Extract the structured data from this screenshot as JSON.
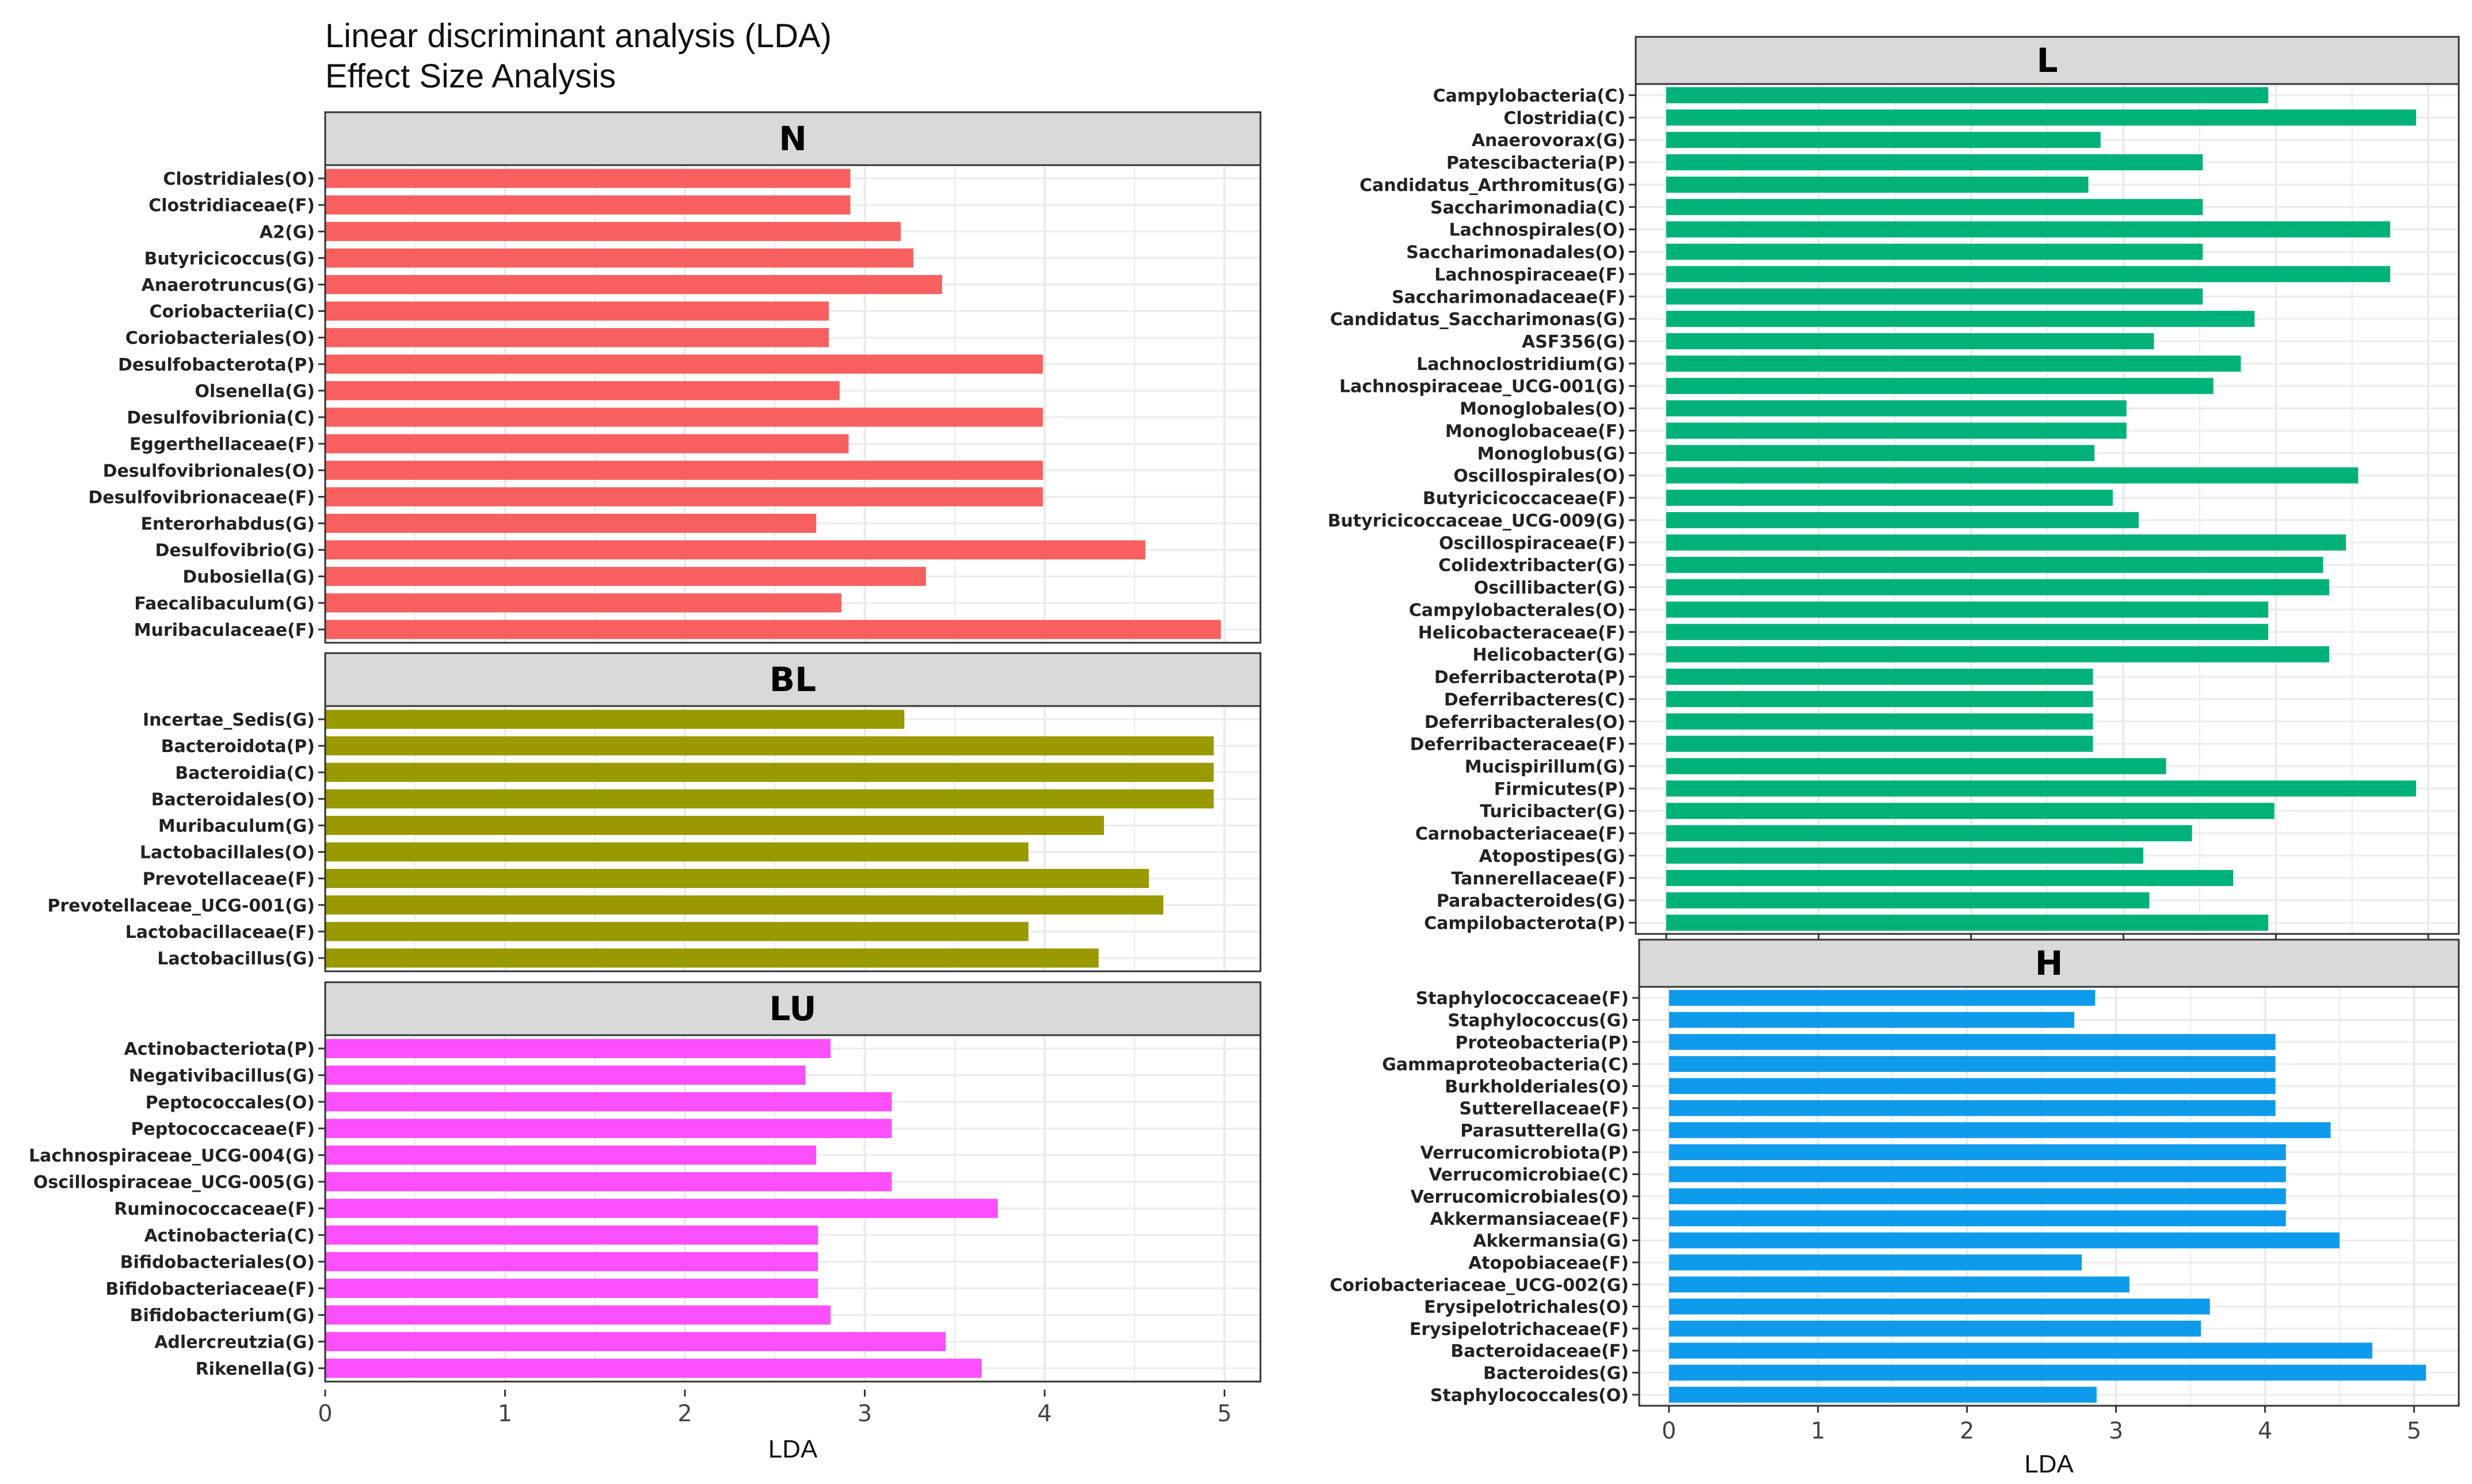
{
  "title_line1": "Linear discriminant analysis (LDA)",
  "title_line2": "Effect Size Analysis",
  "chart_data": [
    {
      "type": "bar",
      "orientation": "horizontal",
      "panel": "N",
      "color": "#F8605F",
      "xlabel": "LDA",
      "xlim": [
        0,
        5.2
      ],
      "xticks": [
        "0",
        "1",
        "2",
        "3",
        "4",
        "5"
      ],
      "categories": [
        "Clostridiales(O)",
        "Clostridiaceae(F)",
        "A2(G)",
        "Butyricicoccus(G)",
        "Anaerotruncus(G)",
        "Coriobacteriia(C)",
        "Coriobacteriales(O)",
        "Desulfobacterota(P)",
        "Olsenella(G)",
        "Desulfovibrionia(C)",
        "Eggerthellaceae(F)",
        "Desulfovibrionales(O)",
        "Desulfovibrionaceae(F)",
        "Enterorhabdus(G)",
        "Desulfovibrio(G)",
        "Dubosiella(G)",
        "Faecalibaculum(G)",
        "Muribaculaceae(F)"
      ],
      "values": [
        2.92,
        2.92,
        3.2,
        3.27,
        3.43,
        2.8,
        2.8,
        3.99,
        2.86,
        3.99,
        2.91,
        3.99,
        3.99,
        2.73,
        4.56,
        3.34,
        2.87,
        4.98
      ]
    },
    {
      "type": "bar",
      "orientation": "horizontal",
      "panel": "BL",
      "color": "#999900",
      "xlabel": "LDA",
      "xlim": [
        0,
        5.2
      ],
      "xticks": [
        "0",
        "1",
        "2",
        "3",
        "4",
        "5"
      ],
      "categories": [
        "Incertae_Sedis(G)",
        "Bacteroidota(P)",
        "Bacteroidia(C)",
        "Bacteroidales(O)",
        "Muribaculum(G)",
        "Lactobacillales(O)",
        "Prevotellaceae(F)",
        "Prevotellaceae_UCG-001(G)",
        "Lactobacillaceae(F)",
        "Lactobacillus(G)"
      ],
      "values": [
        3.22,
        4.94,
        4.94,
        4.94,
        4.33,
        3.91,
        4.58,
        4.66,
        3.91,
        4.3
      ]
    },
    {
      "type": "bar",
      "orientation": "horizontal",
      "panel": "LU",
      "color": "#FA4FFA",
      "xlabel": "LDA",
      "xlim": [
        0,
        5.2
      ],
      "xticks": [
        "0",
        "1",
        "2",
        "3",
        "4",
        "5"
      ],
      "categories": [
        "Actinobacteriota(P)",
        "Negativibacillus(G)",
        "Peptococcales(O)",
        "Peptococcaceae(F)",
        "Lachnospiraceae_UCG-004(G)",
        "Oscillospiraceae_UCG-005(G)",
        "Ruminococcaceae(F)",
        "Actinobacteria(C)",
        "Bifidobacteriales(O)",
        "Bifidobacteriaceae(F)",
        "Bifidobacterium(G)",
        "Adlercreutzia(G)",
        "Rikenella(G)"
      ],
      "values": [
        2.81,
        2.67,
        3.15,
        3.15,
        2.73,
        3.15,
        3.74,
        2.74,
        2.74,
        2.74,
        2.81,
        3.45,
        3.65
      ]
    },
    {
      "type": "bar",
      "orientation": "horizontal",
      "panel": "L",
      "color": "#00B27A",
      "xlabel": "",
      "xlim": [
        -0.2,
        5.2
      ],
      "xticks": [],
      "categories": [
        "Campylobacteria(C)",
        "Clostridia(C)",
        "Anaerovorax(G)",
        "Patescibacteria(P)",
        "Candidatus_Arthromitus(G)",
        "Saccharimonadia(C)",
        "Lachnospirales(O)",
        "Saccharimonadales(O)",
        "Lachnospiraceae(F)",
        "Saccharimonadaceae(F)",
        "Candidatus_Saccharimonas(G)",
        "ASF356(G)",
        "Lachnoclostridium(G)",
        "Lachnospiraceae_UCG-001(G)",
        "Monoglobales(O)",
        "Monoglobaceae(F)",
        "Monoglobus(G)",
        "Oscillospirales(O)",
        "Butyricicoccaceae(F)",
        "Butyricicoccaceae_UCG-009(G)",
        "Oscillospiraceae(F)",
        "Colidextribacter(G)",
        "Oscillibacter(G)",
        "Campylobacterales(O)",
        "Helicobacteraceae(F)",
        "Helicobacter(G)",
        "Deferribacterota(P)",
        "Deferribacteres(C)",
        "Deferribacterales(O)",
        "Deferribacteraceae(F)",
        "Mucispirillum(G)",
        "Firmicutes(P)",
        "Turicibacter(G)",
        "Carnobacteriaceae(F)",
        "Atopostipes(G)",
        "Tannerellaceae(F)",
        "Parabacteroides(G)",
        "Campilobacterota(P)"
      ],
      "values": [
        3.95,
        4.92,
        2.85,
        3.52,
        2.77,
        3.52,
        4.75,
        3.52,
        4.75,
        3.52,
        3.86,
        3.2,
        3.77,
        3.59,
        3.02,
        3.02,
        2.81,
        4.54,
        2.93,
        3.1,
        4.46,
        4.31,
        4.35,
        3.95,
        3.95,
        4.35,
        2.8,
        2.8,
        2.8,
        2.8,
        3.28,
        4.92,
        3.99,
        3.45,
        3.13,
        3.72,
        3.17,
        3.95
      ]
    },
    {
      "type": "bar",
      "orientation": "horizontal",
      "panel": "H",
      "color": "#0F9BEB",
      "xlabel": "LDA",
      "xlim": [
        -0.2,
        5.3
      ],
      "xticks": [
        "0",
        "1",
        "2",
        "3",
        "4",
        "5"
      ],
      "categories": [
        "Staphylococcaceae(F)",
        "Staphylococcus(G)",
        "Proteobacteria(P)",
        "Gammaproteobacteria(C)",
        "Burkholderiales(O)",
        "Sutterellaceae(F)",
        "Parasutterella(G)",
        "Verrucomicrobiota(P)",
        "Verrucomicrobiae(C)",
        "Verrucomicrobiales(O)",
        "Akkermansiaceae(F)",
        "Akkermansia(G)",
        "Atopobiaceae(F)",
        "Coriobacteriaceae_UCG-002(G)",
        "Erysipelotrichales(O)",
        "Erysipelotrichaceae(F)",
        "Bacteroidaceae(F)",
        "Bacteroides(G)",
        "Staphylococcales(O)"
      ],
      "values": [
        2.86,
        2.72,
        4.07,
        4.07,
        4.07,
        4.07,
        4.44,
        4.14,
        4.14,
        4.14,
        4.14,
        4.5,
        2.77,
        3.09,
        3.63,
        3.57,
        4.72,
        5.08,
        2.87
      ]
    }
  ]
}
